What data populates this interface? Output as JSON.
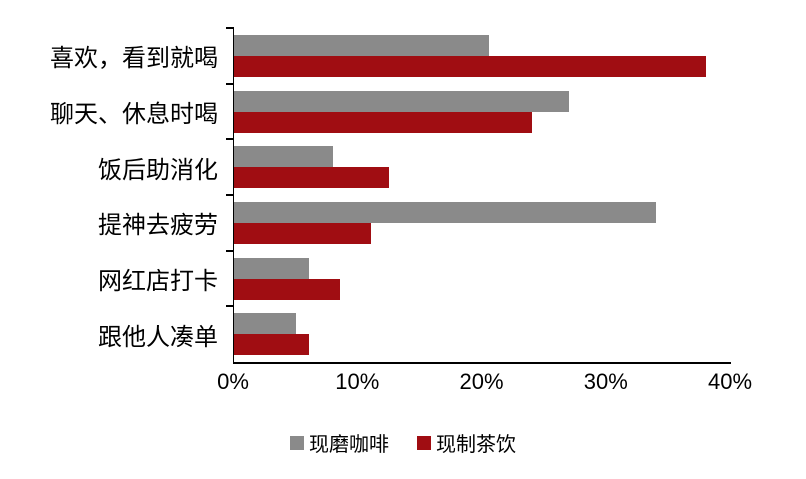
{
  "chart_data": {
    "type": "bar",
    "orientation": "horizontal",
    "title": "",
    "categories": [
      "喜欢，看到就喝",
      "聊天、休息时喝",
      "饭后助消化",
      "提神去疲劳",
      "网红店打卡",
      "跟他人凑单"
    ],
    "series": [
      {
        "name": "现磨咖啡",
        "color": "#8a8a8a",
        "values": [
          20.5,
          27,
          8,
          34,
          6,
          5
        ]
      },
      {
        "name": "现制茶饮",
        "color": "#a00d12",
        "values": [
          38,
          24,
          12.5,
          11,
          8.5,
          6
        ]
      }
    ],
    "xlim": [
      0,
      40
    ],
    "x_ticks": [
      "0%",
      "10%",
      "20%",
      "30%",
      "40%"
    ],
    "xlabel": "",
    "ylabel": "",
    "grid": false,
    "legend_position": "bottom"
  },
  "colors": {
    "axis": "#000000",
    "text": "#000000",
    "background": "#ffffff"
  }
}
